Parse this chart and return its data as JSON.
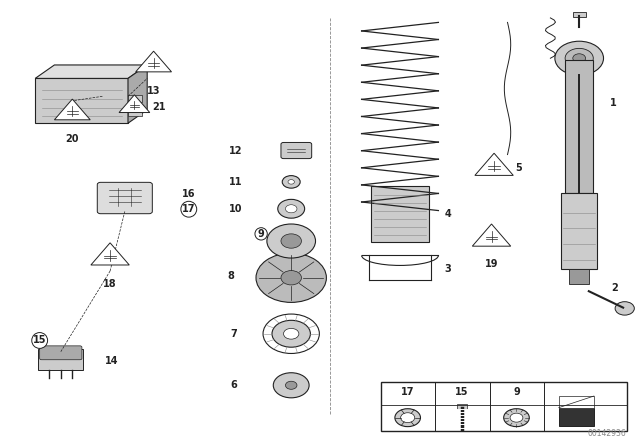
{
  "bg_color": "#ffffff",
  "watermark": "00142936",
  "gray_dark": "#222222",
  "gray_mid": "#888888",
  "gray_light": "#cccccc",
  "gray_body": "#bbbbbb"
}
